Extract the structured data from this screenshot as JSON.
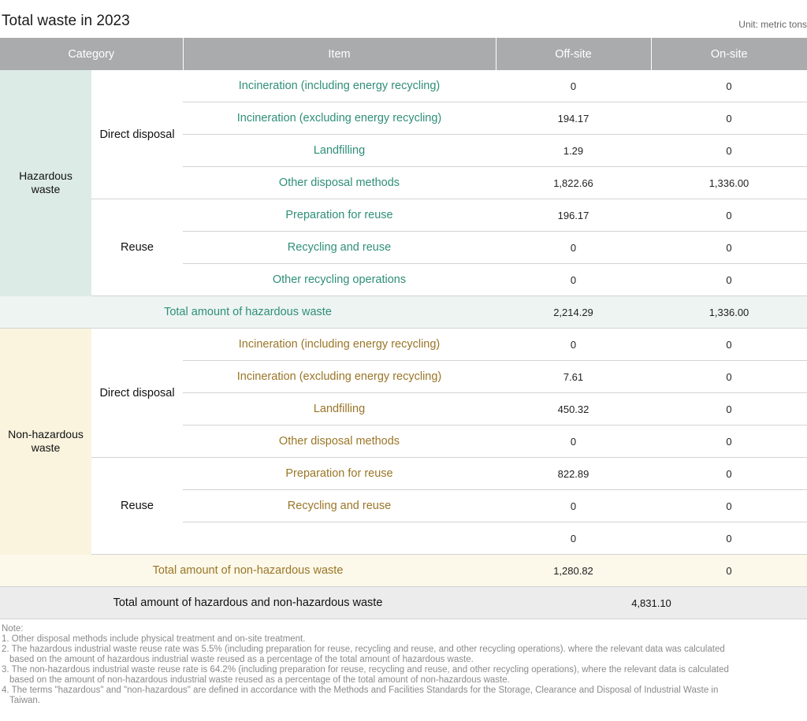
{
  "title": "Total waste in 2023",
  "unit": "Unit: metric tons",
  "headers": [
    "Category",
    "Item",
    "Off-site",
    "On-site"
  ],
  "hazardous": {
    "category": [
      "Hazardous",
      "waste"
    ],
    "direct_label": "Direct disposal",
    "reuse_label": "Reuse",
    "direct_rows": [
      {
        "item": "Incineration (including energy recycling)",
        "off": "0",
        "on": "0"
      },
      {
        "item": "Incineration (excluding energy recycling)",
        "off": "194.17",
        "on": "0"
      },
      {
        "item": "Landfilling",
        "off": "1.29",
        "on": "0"
      },
      {
        "item": "Other disposal methods",
        "off": "1,822.66",
        "on": "1,336.00"
      }
    ],
    "reuse_rows": [
      {
        "item": "Preparation for reuse",
        "off": "196.17",
        "on": "0"
      },
      {
        "item": "Recycling and reuse",
        "off": "0",
        "on": "0"
      },
      {
        "item": "Other recycling operations",
        "off": "0",
        "on": "0"
      }
    ],
    "total_label": "Total amount of hazardous waste",
    "total_off": "2,214.29",
    "total_on": "1,336.00"
  },
  "non_hazardous": {
    "category": [
      "Non-hazardous",
      "waste"
    ],
    "direct_label": "Direct disposal",
    "reuse_label": "Reuse",
    "direct_rows": [
      {
        "item": "Incineration (including energy recycling)",
        "off": "0",
        "on": "0"
      },
      {
        "item": "Incineration (excluding energy recycling)",
        "off": "7.61",
        "on": "0"
      },
      {
        "item": "Landfilling",
        "off": "450.32",
        "on": "0"
      },
      {
        "item": "Other disposal methods",
        "off": "0",
        "on": "0"
      }
    ],
    "reuse_rows": [
      {
        "item": "Preparation for reuse",
        "off": "822.89",
        "on": "0"
      },
      {
        "item": "Recycling and reuse",
        "off": "0",
        "on": "0"
      },
      {
        "item": "",
        "off": "0",
        "on": "0"
      }
    ],
    "total_label": "Total amount of non-hazardous waste",
    "total_off": "1,280.82",
    "total_on": "0"
  },
  "grand_total": {
    "label": "Total amount of hazardous and non-hazardous waste",
    "value": "4,831.10"
  },
  "notes": {
    "heading": "Note:",
    "n1": "1. Other disposal methods include physical treatment and on-site treatment.",
    "n2a": "2. The hazardous industrial waste reuse rate was 5.5% (including preparation for reuse, recycling and reuse, and other recycling operations). where the relevant data was calculated",
    "n2b": "based on the amount of hazardous industrial waste reused as a percentage of the total amount of hazardous waste.",
    "n3a": "3. The non-hazardous industrial waste reuse rate is 64.2% (including preparation for reuse, recycling and reuse, and other recycling operations), where the relevant data is calculated",
    "n3b": "based on the amount of non-hazardous industrial waste reused as a percentage of the total amount of non-hazardous waste.",
    "n4a": "4. The terms \"hazardous\" and \"non-hazardous\" are defined in accordance with the Methods and Facilities Standards for the Storage, Clearance and Disposal of Industrial Waste in",
    "n4b": "Taiwan."
  },
  "colors": {
    "header_bg": "#a9abad",
    "hazardous_accent": "#2f8f78",
    "hazardous_bg": "#dcebe6",
    "non_hazardous_accent": "#9a7627",
    "non_hazardous_bg": "#faf4df",
    "grand_total_bg": "#ececec"
  }
}
